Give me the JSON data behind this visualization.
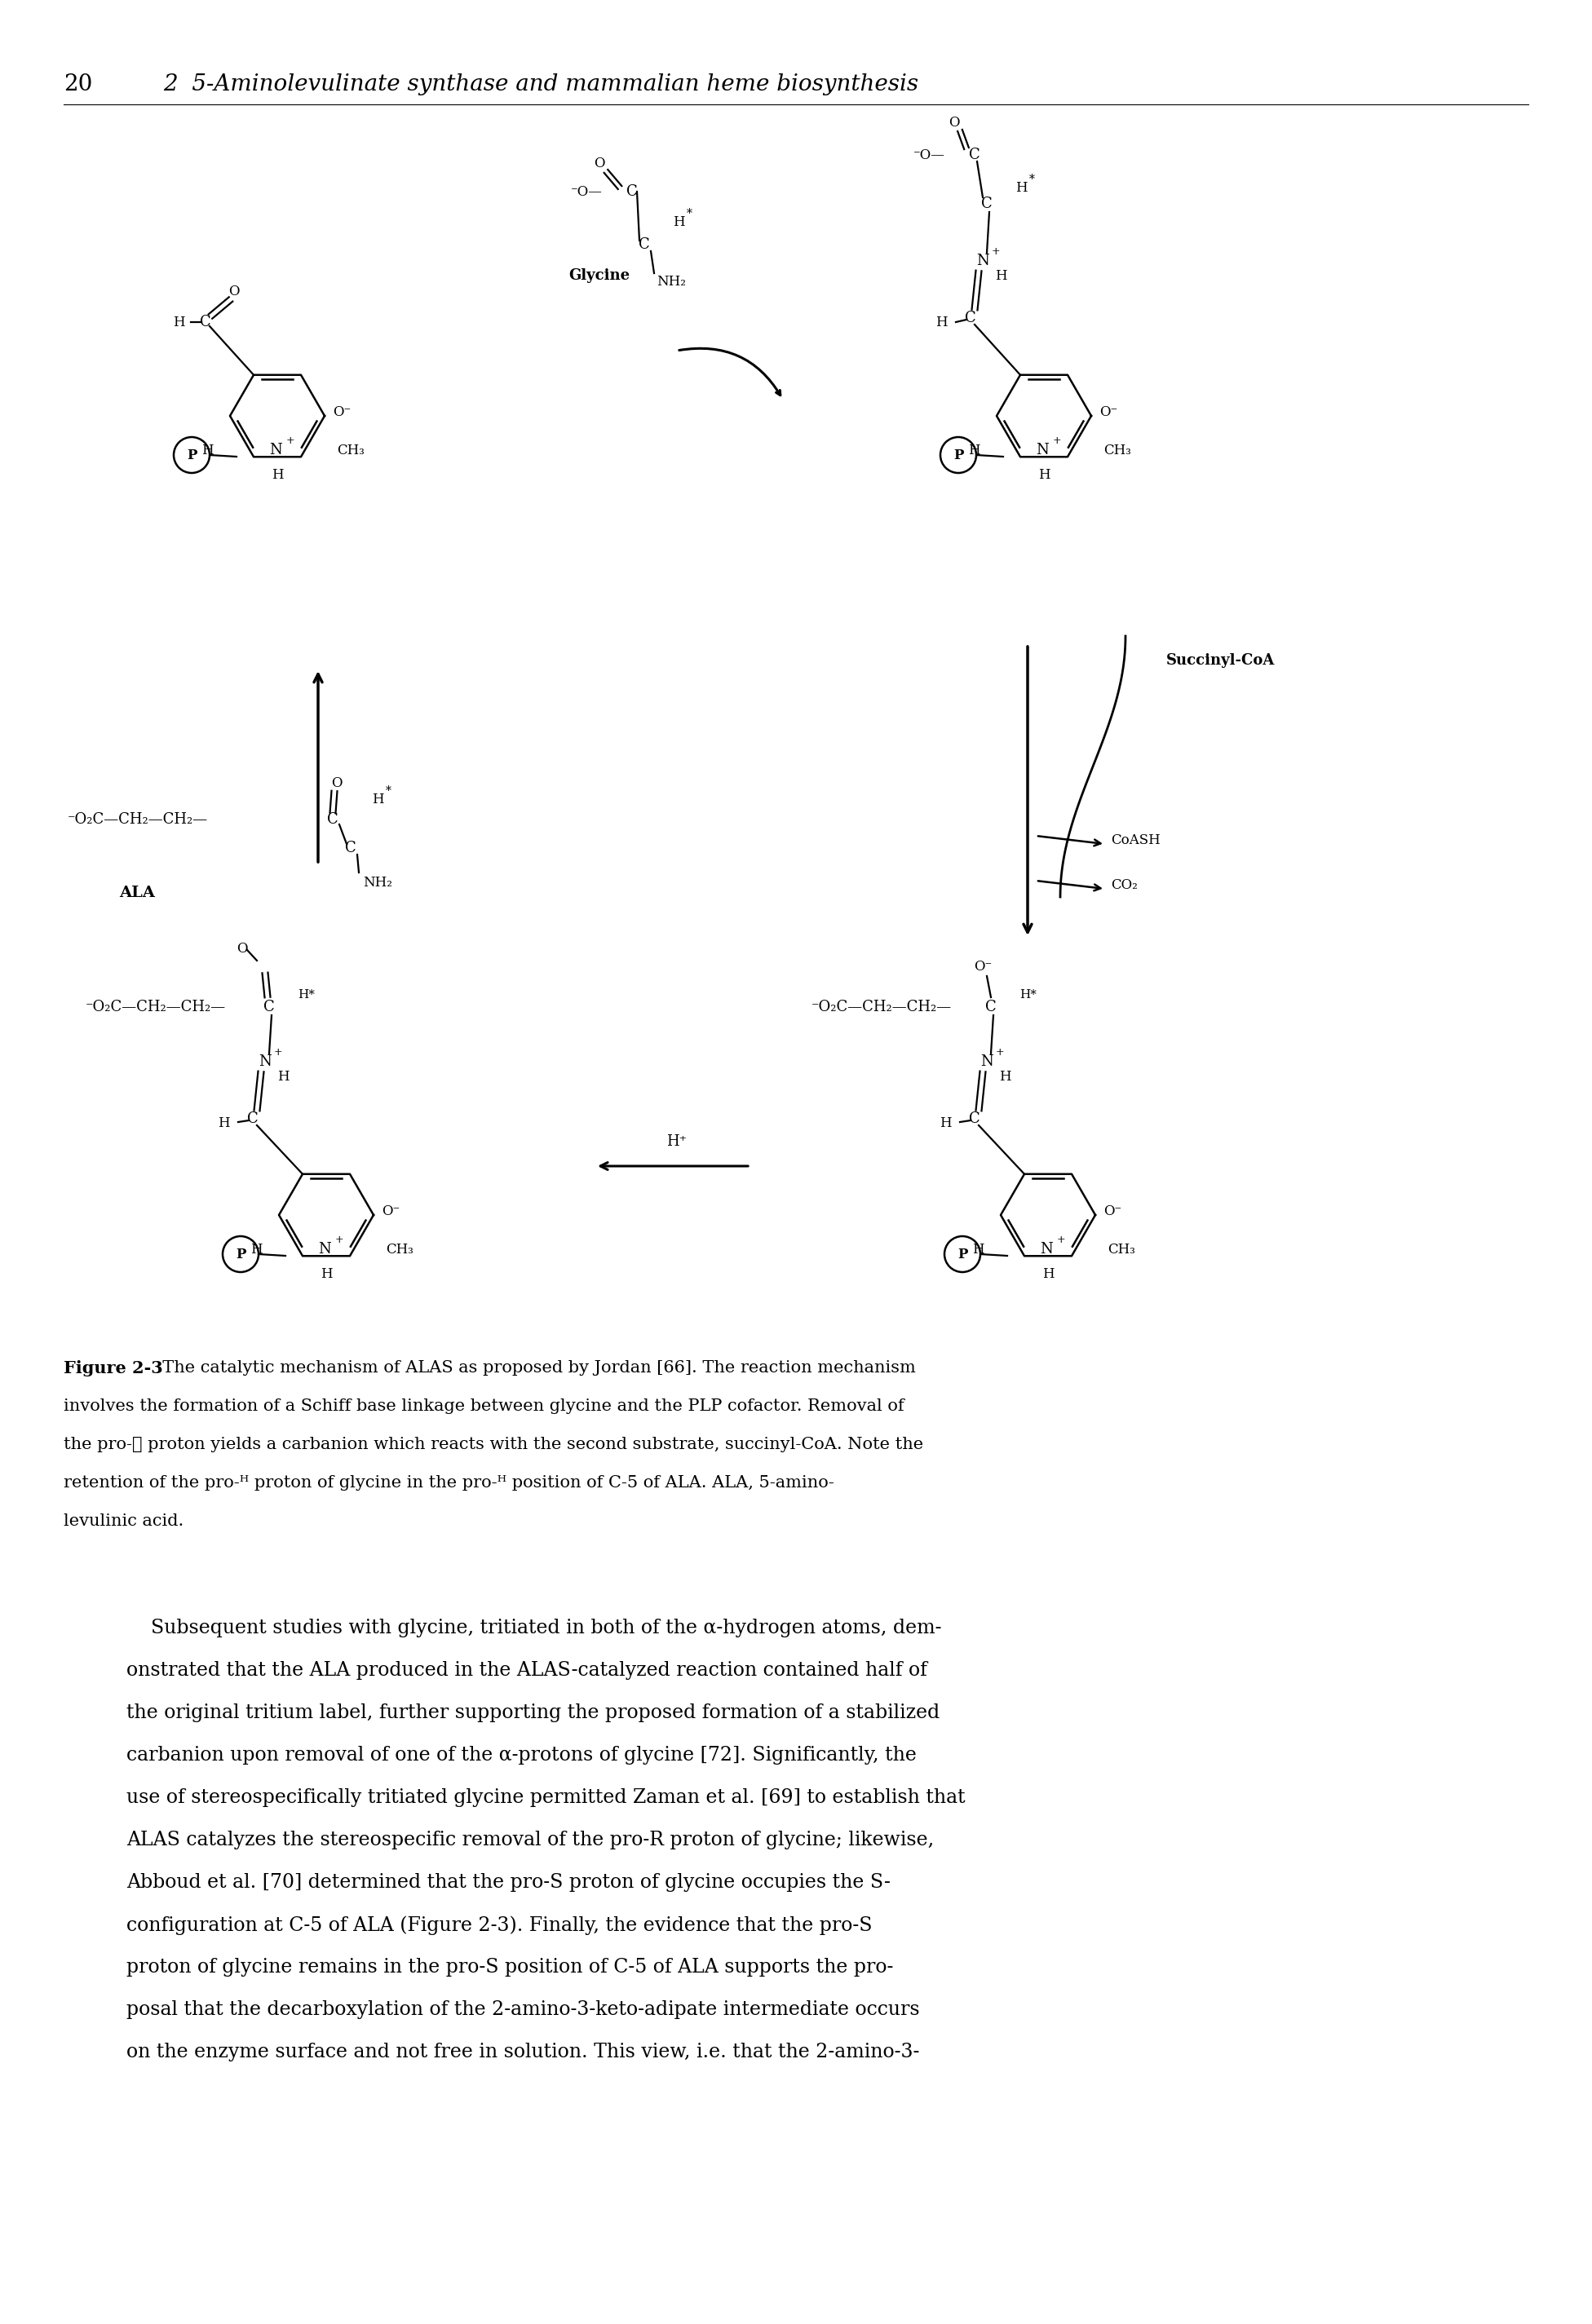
{
  "page_number": "20",
  "chapter_title": "2  5-Aminolevulinate synthase and mammalian heme biosynthesis",
  "background_color": "#ffffff",
  "text_color": "#000000",
  "fig_width": 19.52,
  "fig_height": 28.5,
  "header_fontsize": 20,
  "caption_fontsize": 15,
  "body_fontsize": 17,
  "chem_fontsize": 12,
  "body_lines": [
    "    Subsequent studies with glycine, tritiated in both of the α-hydrogen atoms, dem-",
    "onstrated that the ALA produced in the ALAS-catalyzed reaction contained half of",
    "the original tritium label, further supporting the proposed formation of a stabilized",
    "carbanion upon removal of one of the α-protons of glycine [72]. Significantly, the",
    "use of stereospecifically tritiated glycine permitted Zaman et al. [69] to establish that",
    "ALAS catalyzes the stereospecific removal of the pro-R proton of glycine; likewise,",
    "Abboud et al. [70] determined that the pro-S proton of glycine occupies the S-",
    "configuration at C-5 of ALA (Figure 2-3). Finally, the evidence that the pro-S",
    "proton of glycine remains in the pro-S position of C-5 of ALA supports the pro-",
    "posal that the decarboxylation of the 2-amino-3-keto-adipate intermediate occurs",
    "on the enzyme surface and not free in solution. This view, i.e. that the 2-amino-3-"
  ]
}
